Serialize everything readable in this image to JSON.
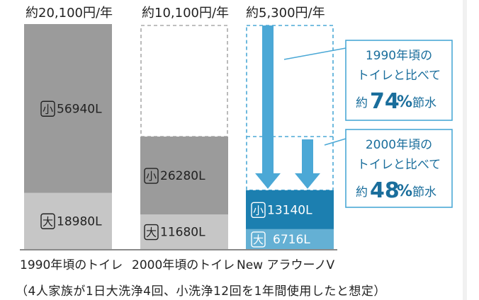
{
  "chart_data": {
    "type": "bar",
    "title": "",
    "xlabel": "",
    "ylabel": "",
    "categories": [
      "1990年頃のトイレ",
      "2000年頃のトイレ",
      "New アラウーノV"
    ],
    "annual_cost_labels": [
      "約20,100円/年",
      "約10,100円/年",
      "約5,300円/年"
    ],
    "series": [
      {
        "name": "大",
        "values": [
          18980,
          11680,
          6716
        ],
        "labels": [
          "18980L",
          "11680L",
          "6716L"
        ]
      },
      {
        "name": "小",
        "values": [
          56940,
          26280,
          13140
        ],
        "labels": [
          "56940L",
          "26280L",
          "13140L"
        ]
      }
    ],
    "stacked": true,
    "ylim": [
      0,
      80000
    ],
    "grid": false,
    "colors": {
      "c1990_small": "#9b9b9b",
      "c1990_large": "#c6c6c6",
      "c2000_small": "#9b9b9b",
      "c2000_large": "#c6c6c6",
      "new_small": "#1c7fb0",
      "new_large": "#64b0d4",
      "arrow": "#4ba8d6",
      "callout_text": "#1a6e9c",
      "dash_gray": "#aaaaaa"
    },
    "callouts": [
      {
        "line1": "1990年頃の",
        "line2": "トイレと比べて",
        "prefix": "約",
        "percent": "74",
        "unit": "%",
        "suffix": "節水",
        "compare_index": 0
      },
      {
        "line1": "2000年頃の",
        "line2": "トイレと比べて",
        "prefix": "約",
        "percent": "48",
        "unit": "%",
        "suffix": "節水",
        "compare_index": 1
      }
    ]
  },
  "footnote": "（4人家族が1日大洗浄4回、小洗浄12回を1年間使用したと想定）"
}
